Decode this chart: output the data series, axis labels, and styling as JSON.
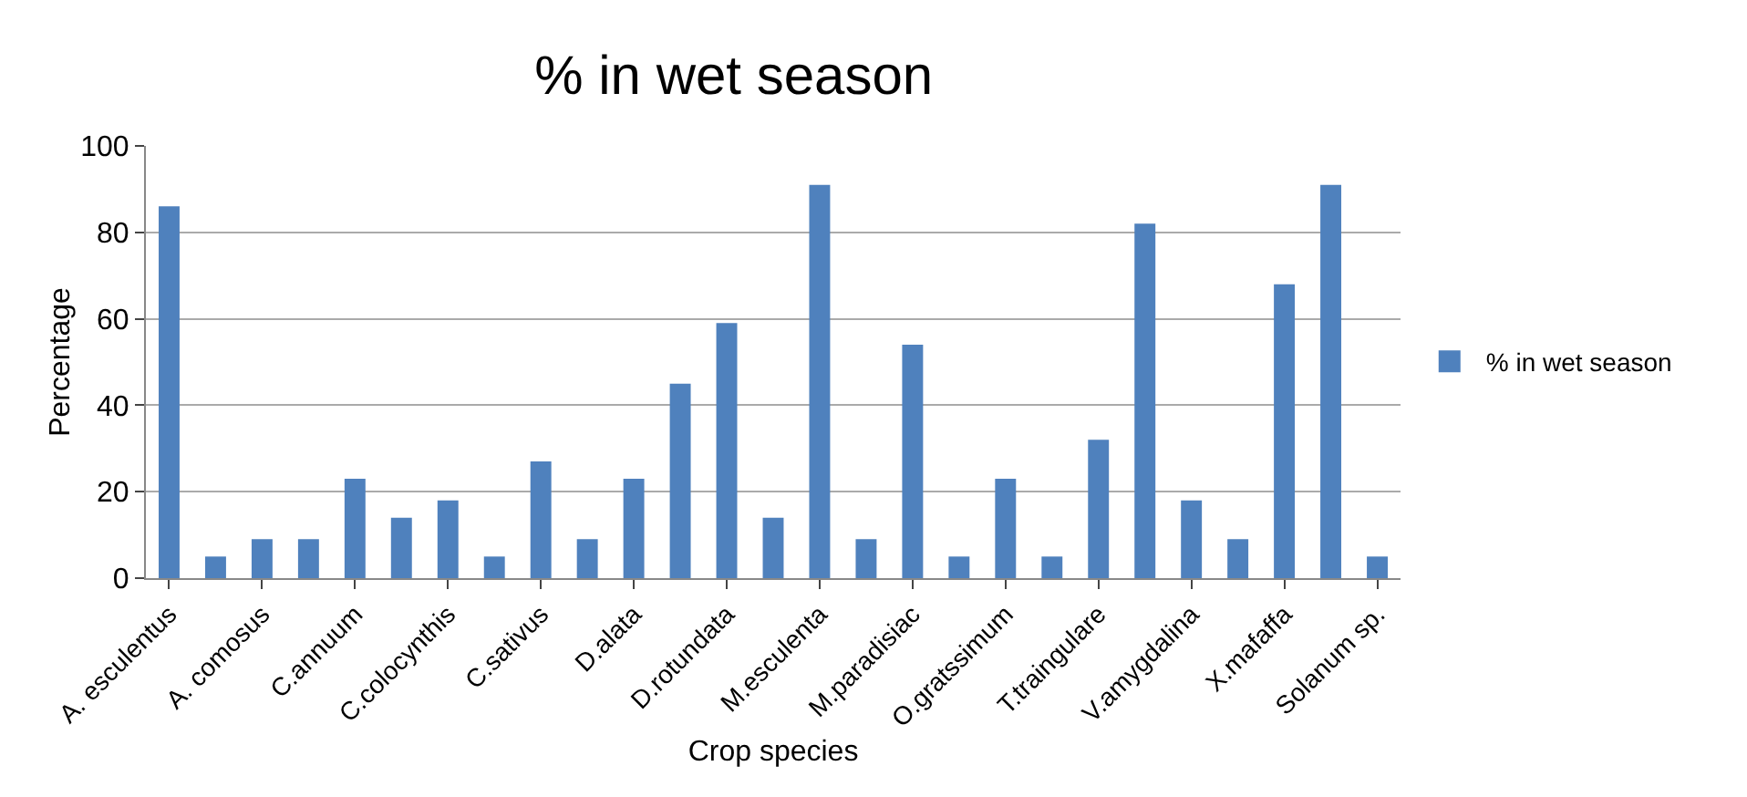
{
  "chart_data": {
    "type": "bar",
    "title": "% in wet season",
    "xlabel": "Crop species",
    "ylabel": "Percentage",
    "categories": [
      "A. esculentus",
      null,
      "A. comosus",
      null,
      "C.annuum",
      null,
      "C.colocynthis",
      null,
      "C.sativus",
      null,
      "D.alata",
      null,
      "D.rotundata",
      null,
      "M.esculenta",
      null,
      "M.paradisiac",
      null,
      "O.gratssimum",
      null,
      "T.traingulare",
      null,
      "V.amygdalina",
      null,
      "X.mafaffa",
      null,
      "Solanum sp."
    ],
    "series": [
      {
        "name": "% in wet season",
        "color": "#4f81bd",
        "values": [
          86,
          5,
          9,
          9,
          23,
          14,
          18,
          5,
          27,
          9,
          23,
          45,
          59,
          14,
          91,
          9,
          54,
          5,
          23,
          5,
          32,
          82,
          18,
          9,
          68,
          91,
          5
        ]
      }
    ],
    "ylim": [
      0,
      100
    ],
    "yticks": [
      0,
      20,
      40,
      60,
      80,
      100
    ],
    "grid": "y",
    "legend": "right"
  }
}
